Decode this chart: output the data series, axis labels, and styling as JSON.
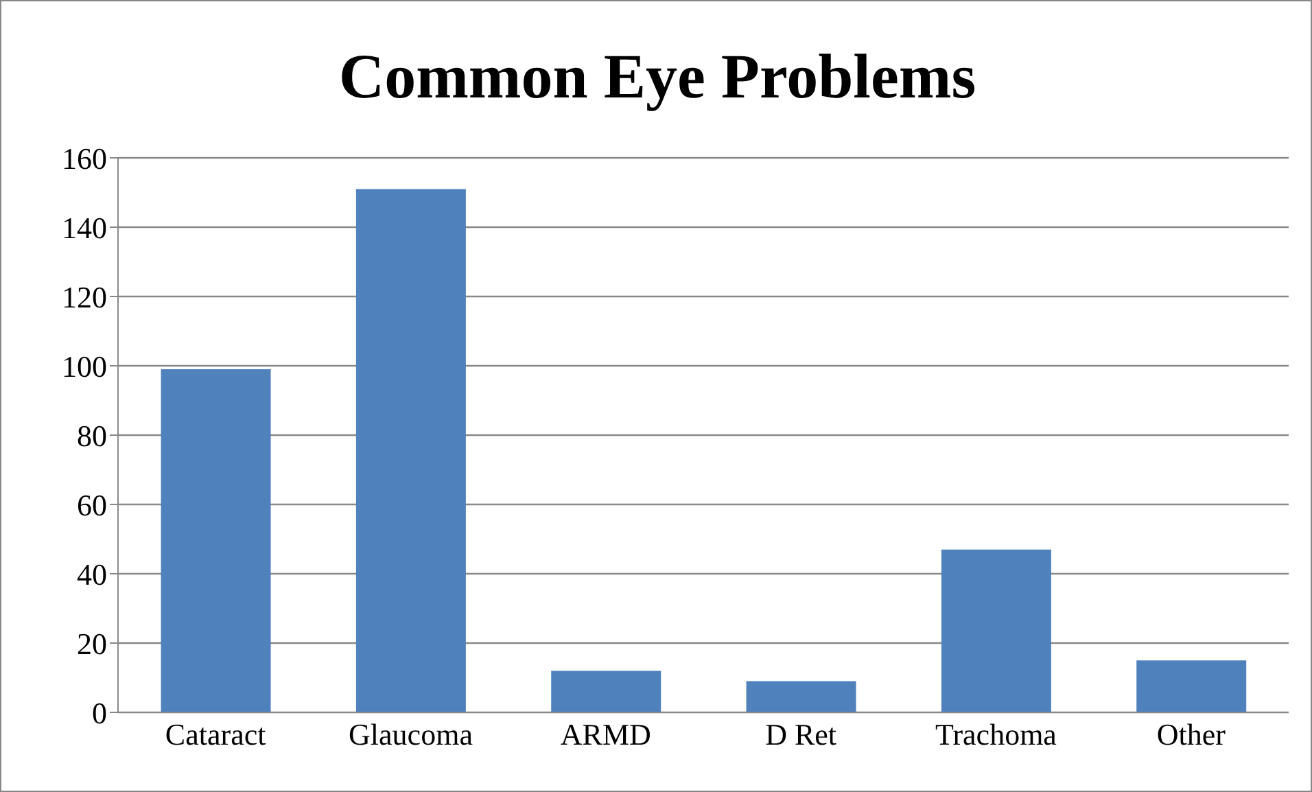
{
  "chart_data": {
    "type": "bar",
    "title": "Common Eye Problems",
    "categories": [
      "Cataract",
      "Glaucoma",
      "ARMD",
      "D Ret",
      "Trachoma",
      "Other"
    ],
    "values": [
      99,
      151,
      12,
      9,
      47,
      15
    ],
    "color": "#4f81bd",
    "ylim": [
      0,
      160
    ],
    "yticks": [
      0,
      20,
      40,
      60,
      80,
      100,
      120,
      140,
      160
    ],
    "grid": "y",
    "legend": false
  }
}
